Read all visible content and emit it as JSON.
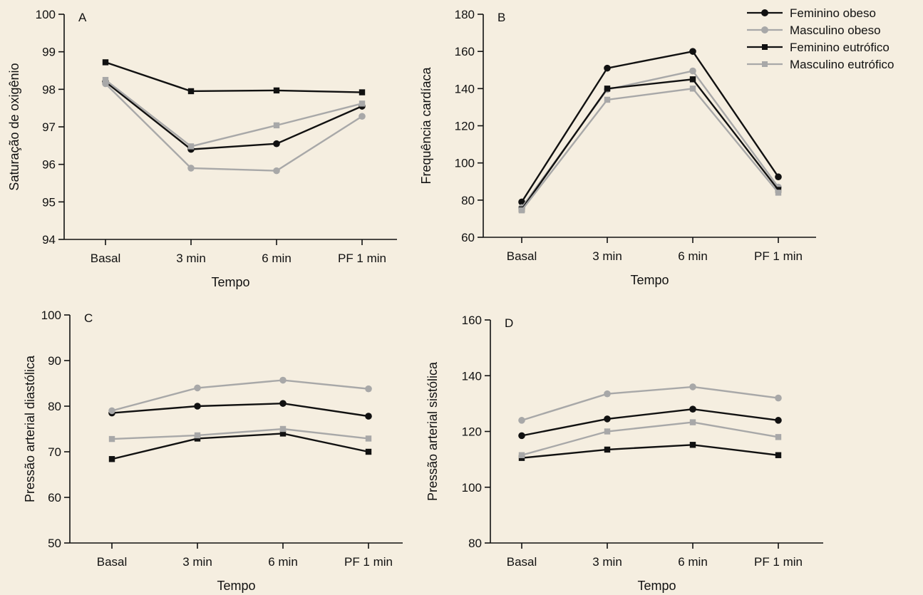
{
  "legend": {
    "entries": [
      {
        "label": "Feminino obeso",
        "color": "#111111",
        "marker": "circle"
      },
      {
        "label": "Masculino obeso",
        "color": "#a8a8a8",
        "marker": "circle"
      },
      {
        "label": "Feminino eutrófico",
        "color": "#111111",
        "marker": "square"
      },
      {
        "label": "Masculino eutrófico",
        "color": "#a8a8a8",
        "marker": "square"
      }
    ]
  },
  "chart_data": [
    {
      "type": "line",
      "panel_label": "A",
      "xlabel": "Tempo",
      "ylabel": "Saturação de oxigênio",
      "categories": [
        "Basal",
        "3 min",
        "6 min",
        "PF 1 min"
      ],
      "ylim": [
        94,
        100
      ],
      "yticks": [
        "94",
        "95",
        "96",
        "97",
        "98",
        "99",
        "100"
      ],
      "series": [
        {
          "name": "Feminino obeso",
          "values": [
            98.2,
            96.4,
            96.55,
            97.55
          ]
        },
        {
          "name": "Masculino obeso",
          "values": [
            98.15,
            95.9,
            95.83,
            97.28
          ]
        },
        {
          "name": "Feminino eutrófico",
          "values": [
            98.72,
            97.95,
            97.97,
            97.92
          ]
        },
        {
          "name": "Masculino eutrófico",
          "values": [
            98.25,
            96.48,
            97.04,
            97.62
          ]
        }
      ]
    },
    {
      "type": "line",
      "panel_label": "B",
      "xlabel": "Tempo",
      "ylabel": "Frequência cardíaca",
      "categories": [
        "Basal",
        "3 min",
        "6 min",
        "PF 1 min"
      ],
      "ylim": [
        60,
        180
      ],
      "yticks": [
        "60",
        "80",
        "100",
        "120",
        "140",
        "160",
        "180"
      ],
      "series": [
        {
          "name": "Feminino obeso",
          "values": [
            79,
            151,
            160,
            92.5
          ]
        },
        {
          "name": "Masculino obeso",
          "values": [
            76,
            139.5,
            149.5,
            87
          ]
        },
        {
          "name": "Feminino eutrófico",
          "values": [
            75,
            140,
            145,
            85.5
          ]
        },
        {
          "name": "Masculino eutrófico",
          "values": [
            74.5,
            134,
            140,
            84
          ]
        }
      ]
    },
    {
      "type": "line",
      "panel_label": "C",
      "xlabel": "Tempo",
      "ylabel": "Pressão arterial diastólica",
      "categories": [
        "Basal",
        "3 min",
        "6 min",
        "PF 1 min"
      ],
      "ylim": [
        50,
        100
      ],
      "yticks": [
        "50",
        "60",
        "70",
        "80",
        "90",
        "100"
      ],
      "series": [
        {
          "name": "Feminino obeso",
          "values": [
            78.5,
            80,
            80.6,
            77.8
          ]
        },
        {
          "name": "Masculino obeso",
          "values": [
            79,
            84,
            85.7,
            83.8
          ]
        },
        {
          "name": "Feminino eutrófico",
          "values": [
            68.4,
            72.9,
            74,
            70
          ]
        },
        {
          "name": "Masculino eutrófico",
          "values": [
            72.8,
            73.6,
            75,
            72.9
          ]
        }
      ]
    },
    {
      "type": "line",
      "panel_label": "D",
      "xlabel": "Tempo",
      "ylabel": "Pressão arterial sistólica",
      "categories": [
        "Basal",
        "3 min",
        "6 min",
        "PF 1 min"
      ],
      "ylim": [
        80,
        160
      ],
      "yticks": [
        "80",
        "100",
        "120",
        "140",
        "160"
      ],
      "series": [
        {
          "name": "Feminino obeso",
          "values": [
            118.5,
            124.5,
            128,
            124
          ]
        },
        {
          "name": "Masculino obeso",
          "values": [
            124,
            133.5,
            136,
            132
          ]
        },
        {
          "name": "Feminino eutrófico",
          "values": [
            110.5,
            113.5,
            115.2,
            111.5
          ]
        },
        {
          "name": "Masculino eutrófico",
          "values": [
            111.5,
            120,
            123.3,
            118
          ]
        }
      ]
    }
  ]
}
